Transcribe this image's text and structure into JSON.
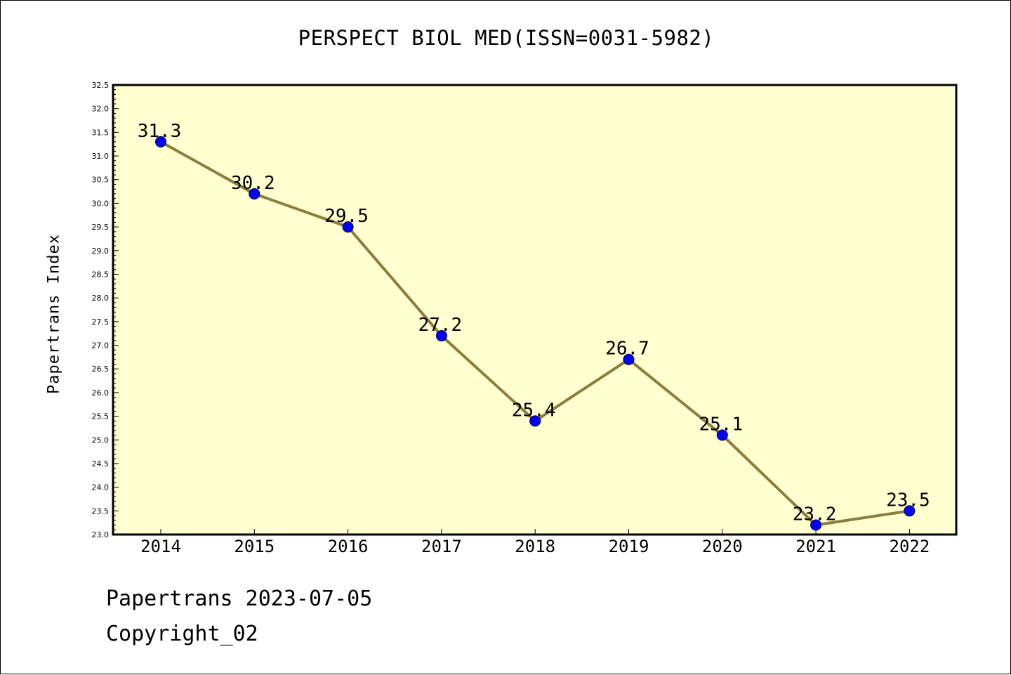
{
  "page": {
    "title": "PERSPECT BIOL MED(ISSN=0031-5982)",
    "footer_line1": "Papertrans 2023-07-05",
    "footer_line2": "Copyright_02"
  },
  "colors": {
    "plot_background": "#ffffd0",
    "line": "#8b7d3a",
    "marker": "#0000ff",
    "axis": "#000000"
  },
  "chart_data": {
    "type": "line",
    "title": "PERSPECT BIOL MED(ISSN=0031-5982)",
    "xlabel": "",
    "ylabel": "Papertrans Index",
    "categories": [
      "2014",
      "2015",
      "2016",
      "2017",
      "2018",
      "2019",
      "2020",
      "2021",
      "2022"
    ],
    "series": [
      {
        "values": [
          31.3,
          30.2,
          29.5,
          27.2,
          25.4,
          26.7,
          25.1,
          23.2,
          23.5
        ],
        "data_labels": [
          "31.3",
          "30.2",
          "29.5",
          "27.2",
          "25.4",
          "26.7",
          "25.1",
          "23.2",
          "23.5"
        ]
      }
    ],
    "ylim": [
      23.0,
      32.5
    ],
    "yticks": [
      "23.0",
      "23.5",
      "24.0",
      "24.5",
      "25.0",
      "25.5",
      "26.0",
      "26.5",
      "27.0",
      "27.5",
      "28.0",
      "28.5",
      "29.0",
      "29.5",
      "30.0",
      "30.5",
      "31.0",
      "31.5",
      "32.0",
      "32.5"
    ],
    "grid": false,
    "legend": "none"
  }
}
